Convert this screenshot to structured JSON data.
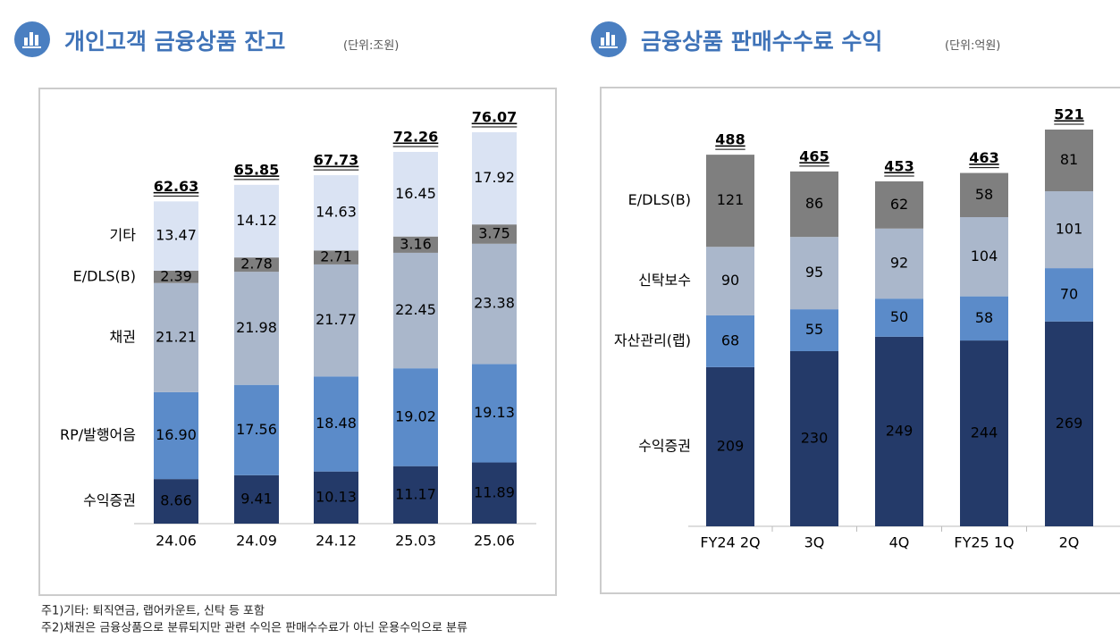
{
  "chart_data": [
    {
      "type": "stacked-bar",
      "title": "개인고객 금융상품 잔고",
      "unit": "(단위:조원)",
      "categories": [
        "24.06",
        "24.09",
        "24.12",
        "25.03",
        "25.06"
      ],
      "series": [
        {
          "name": "수익증권",
          "color": "#243a69",
          "values": [
            8.66,
            9.41,
            10.13,
            11.17,
            11.89
          ]
        },
        {
          "name": "RP/발행어음",
          "color": "#5b8bc9",
          "values": [
            16.9,
            17.56,
            18.48,
            19.02,
            19.13
          ],
          "value_labels": [
            "16.90",
            "17.56",
            "18.48",
            "19.02",
            "19.13"
          ]
        },
        {
          "name": "채권",
          "color": "#aab7cb",
          "values": [
            21.21,
            21.98,
            21.77,
            22.45,
            23.38
          ]
        },
        {
          "name": "E/DLS(B)",
          "color": "#7f7f7f",
          "values": [
            2.39,
            2.78,
            2.71,
            3.16,
            3.75
          ]
        },
        {
          "name": "기타",
          "color": "#dae3f3",
          "values": [
            13.47,
            14.12,
            14.63,
            16.45,
            17.92
          ]
        }
      ],
      "totals": [
        62.63,
        65.85,
        67.73,
        72.26,
        76.07
      ]
    },
    {
      "type": "stacked-bar",
      "title": "금융상품 판매수수료 수익",
      "unit": "(단위:억원)",
      "categories": [
        "FY24 2Q",
        "3Q",
        "4Q",
        "FY25 1Q",
        "2Q"
      ],
      "series": [
        {
          "name": "수익증권",
          "color": "#243a69",
          "values": [
            209,
            230,
            249,
            244,
            269
          ]
        },
        {
          "name": "자산관리(랩)",
          "color": "#5b8bc9",
          "values": [
            68,
            55,
            50,
            58,
            70
          ]
        },
        {
          "name": "신탁보수",
          "color": "#aab7cb",
          "values": [
            90,
            95,
            92,
            104,
            101
          ]
        },
        {
          "name": "E/DLS(B)",
          "color": "#7f7f7f",
          "values": [
            121,
            86,
            62,
            58,
            81
          ]
        }
      ],
      "totals": [
        488,
        465,
        453,
        463,
        521
      ]
    }
  ],
  "notes": [
    "주1)기타: 퇴직연금, 랩어카운트, 신탁 등 포함",
    "주2)채권은 금융상품으로 분류되지만 관련 수익은 판매수수료가 아닌 운용수익으로 분류"
  ]
}
